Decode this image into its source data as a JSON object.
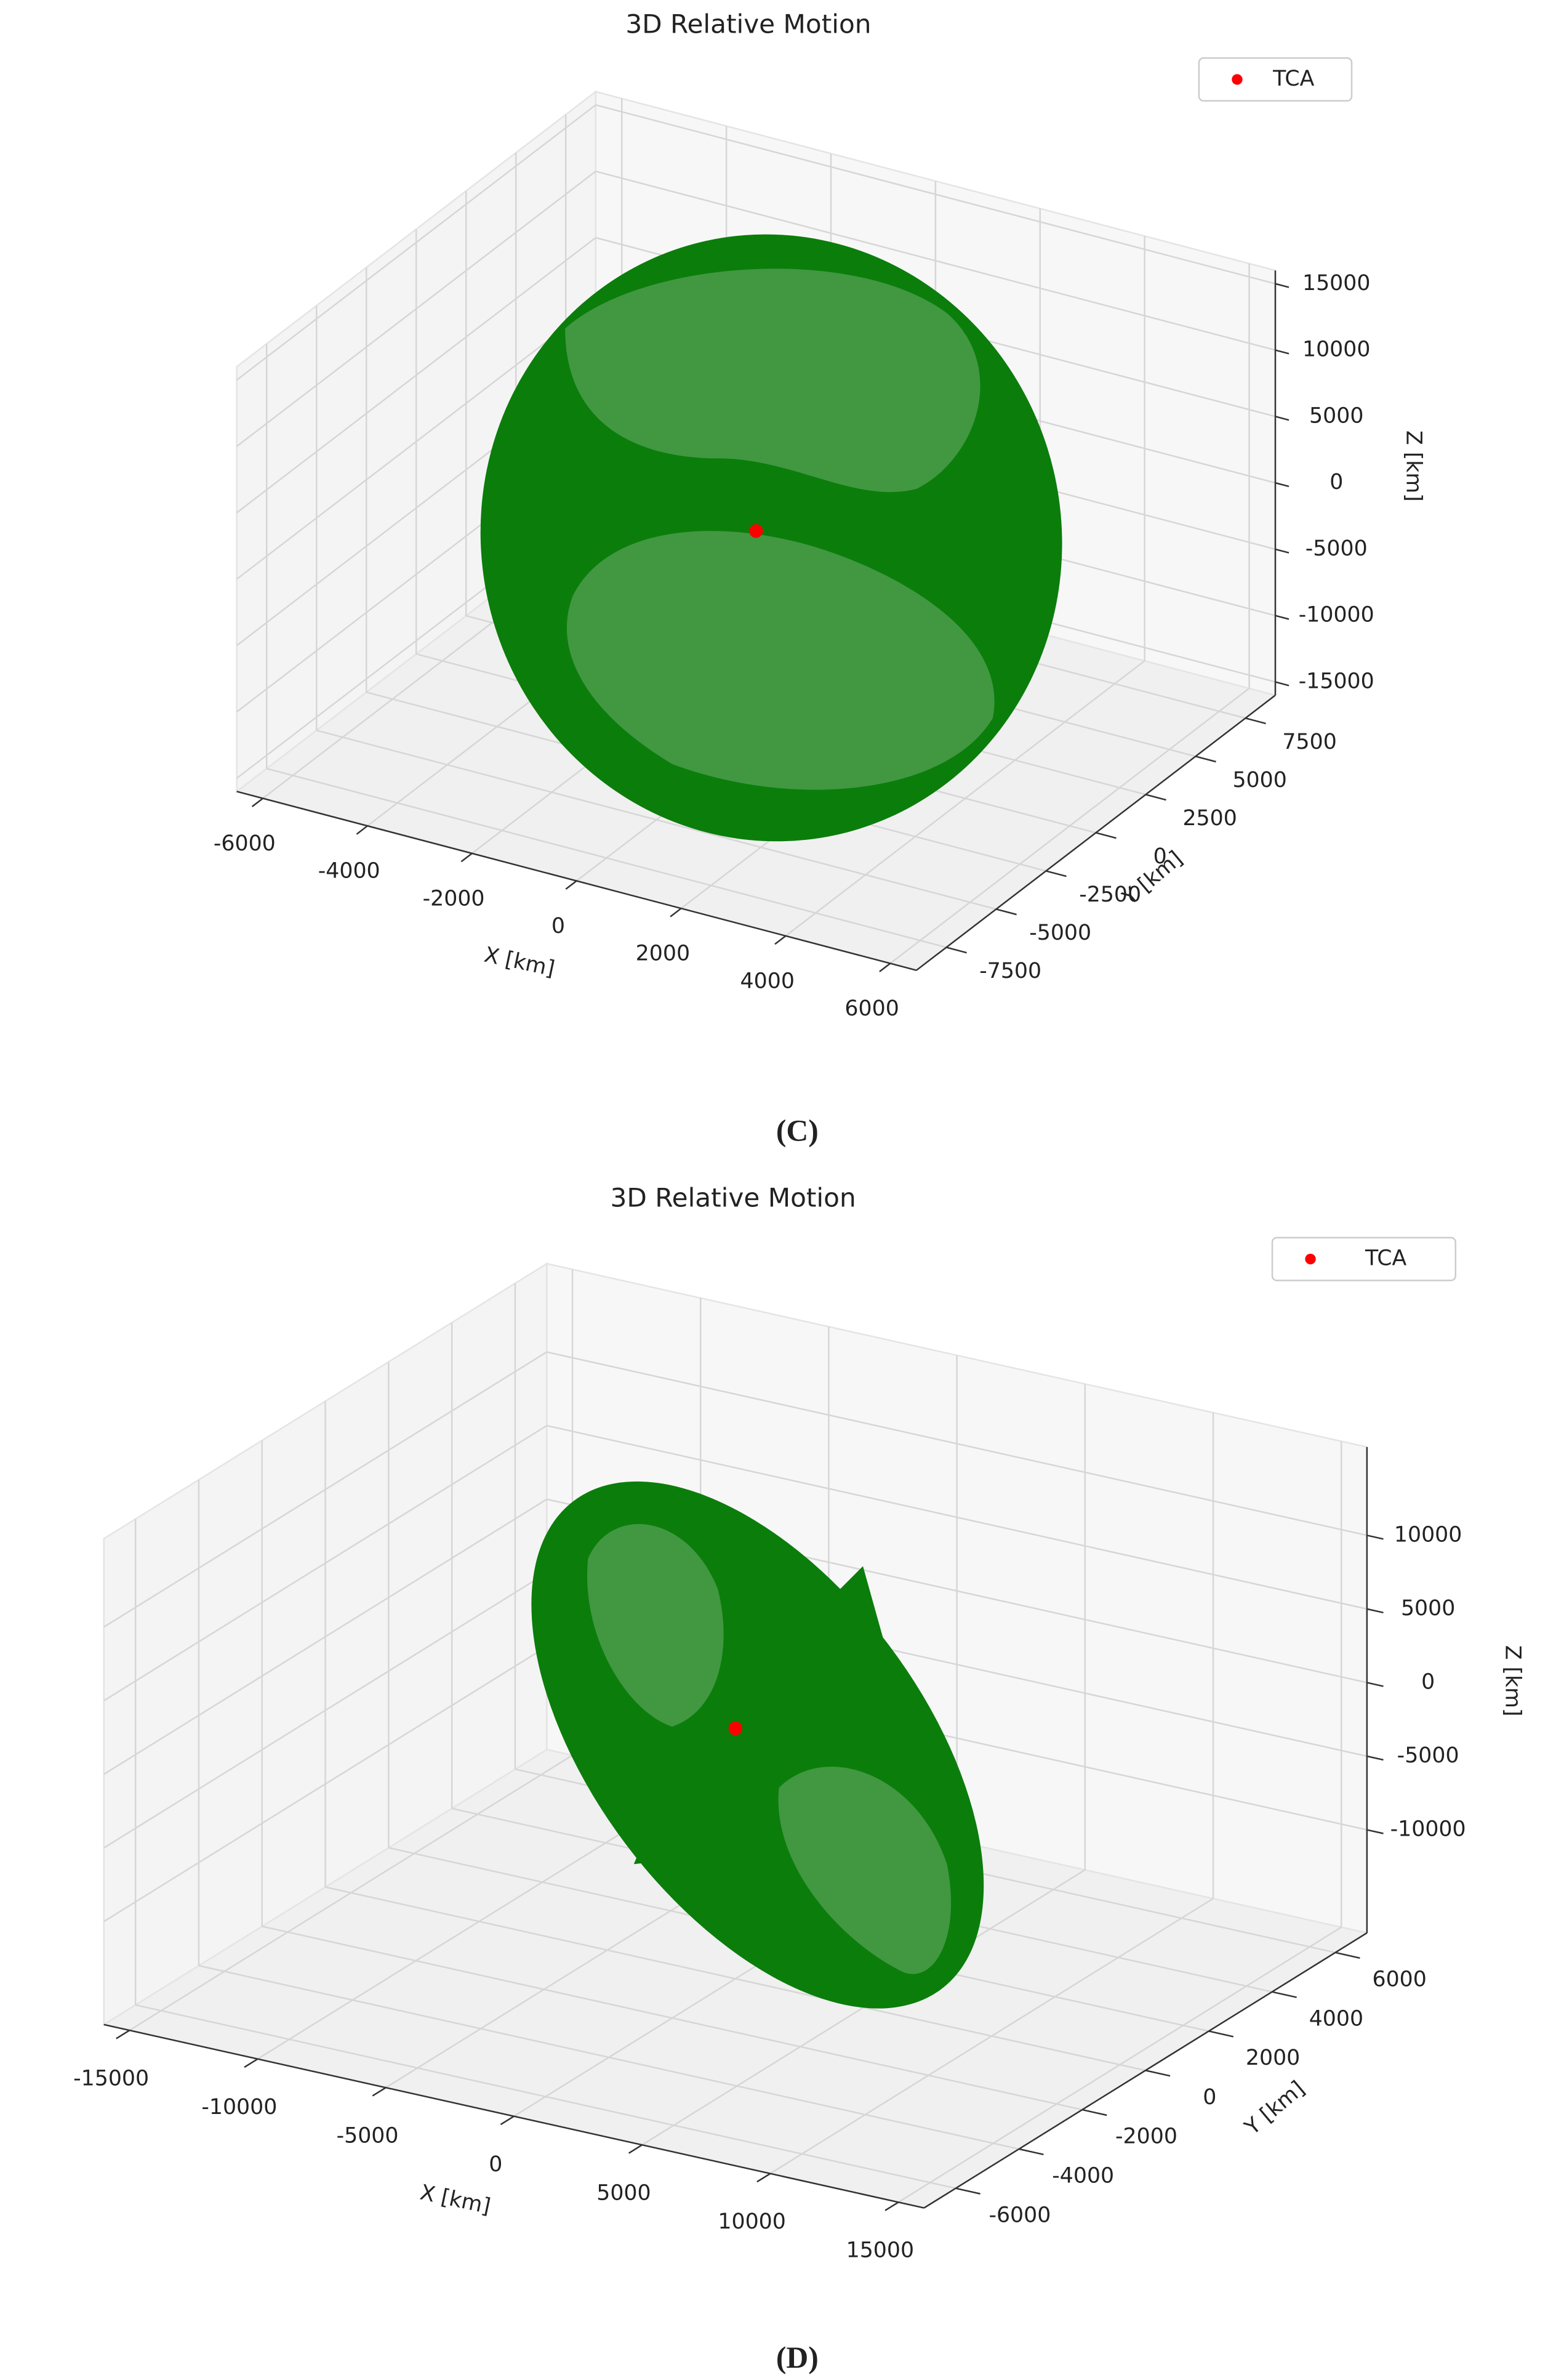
{
  "chart_data": [
    {
      "type": "scatter3d",
      "title": "3D Relative Motion",
      "caption": "(C)",
      "xlabel": "X [km]",
      "ylabel": "Y [km]",
      "zlabel": "Z [km]",
      "xlim": [
        -6500,
        6500
      ],
      "ylim": [
        -9000,
        9000
      ],
      "zlim": [
        -16000,
        16000
      ],
      "xticks": [
        -6000,
        -4000,
        -2000,
        0,
        2000,
        4000,
        6000
      ],
      "yticks": [
        -7500,
        -5000,
        -2500,
        0,
        2500,
        5000,
        7500
      ],
      "zticks": [
        -15000,
        -10000,
        -5000,
        0,
        5000,
        10000,
        15000
      ],
      "grid": true,
      "legend": "upper right",
      "series": [
        {
          "name": "TCA",
          "color": "#ff0000",
          "x": [
            0
          ],
          "y": [
            0
          ],
          "z": [
            0
          ]
        }
      ]
    },
    {
      "type": "scatter3d",
      "title": "3D Relative Motion",
      "caption": "(D)",
      "xlabel": "X [km]",
      "ylabel": "Y [km]",
      "zlabel": "Z [km]",
      "xlim": [
        -16000,
        16000
      ],
      "ylim": [
        -7000,
        7000
      ],
      "zlim": [
        -17000,
        16000
      ],
      "xticks": [
        -15000,
        -10000,
        -5000,
        0,
        5000,
        10000,
        15000
      ],
      "yticks": [
        -6000,
        -4000,
        -2000,
        0,
        2000,
        4000,
        6000
      ],
      "zticks": [
        -10000,
        -5000,
        0,
        5000,
        10000
      ],
      "grid": true,
      "legend": "upper right",
      "series": [
        {
          "name": "TCA",
          "color": "#ff0000",
          "x": [
            0
          ],
          "y": [
            0
          ],
          "z": [
            0
          ]
        }
      ]
    }
  ]
}
